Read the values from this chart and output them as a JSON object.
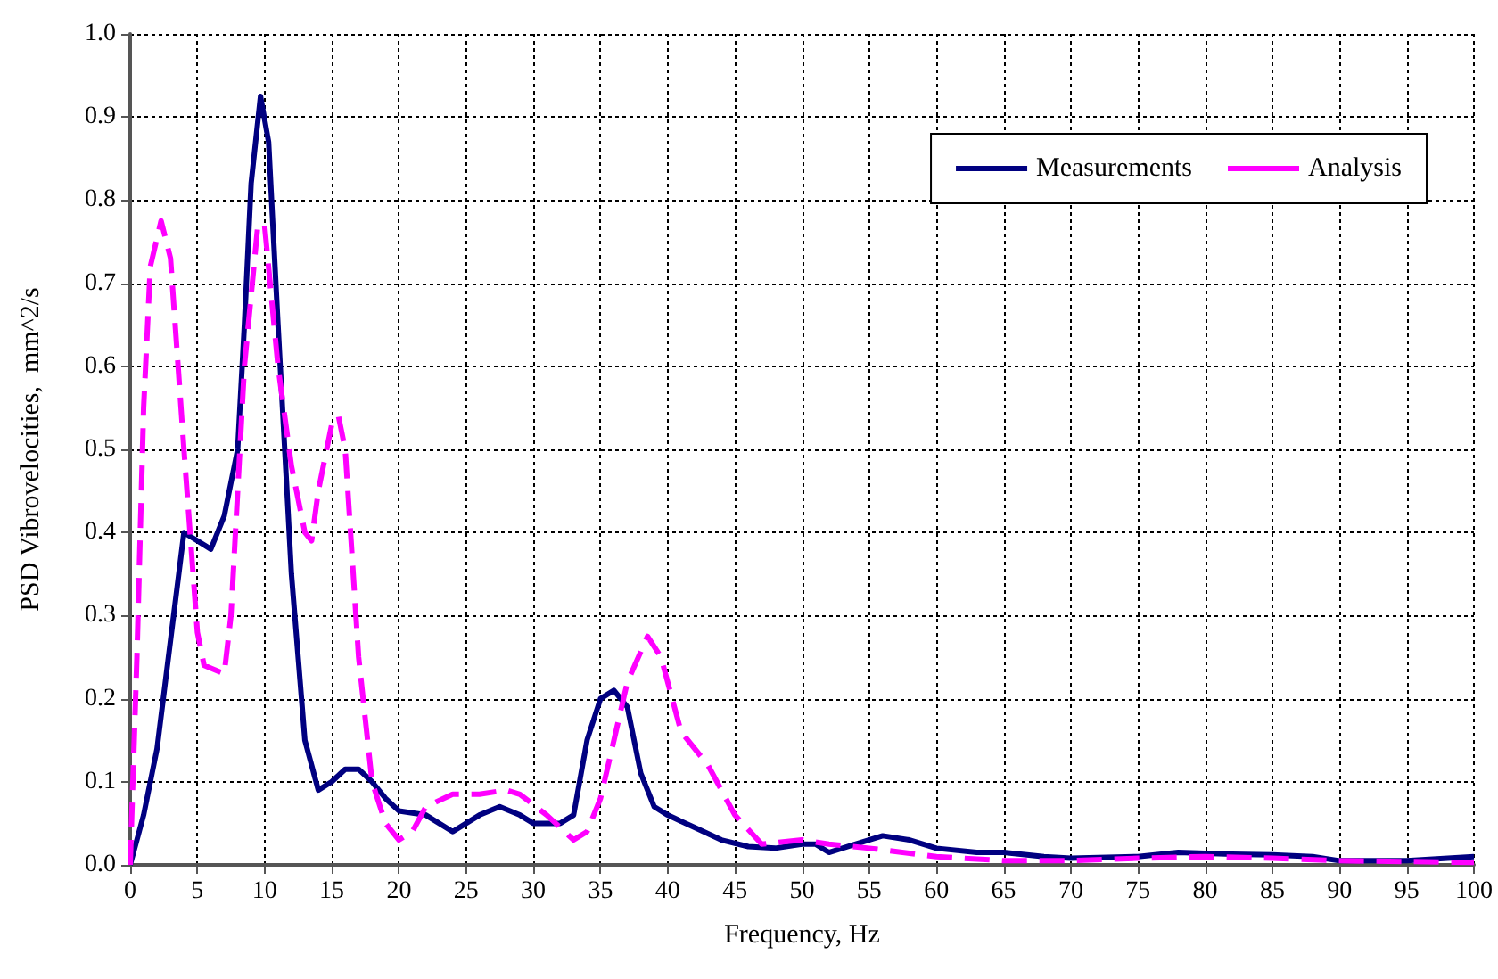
{
  "chart_data": {
    "type": "line",
    "xlabel": "Frequency, Hz",
    "ylabel": "PSD Vibrovelocities,  mm^2/s",
    "xlim": [
      0,
      100
    ],
    "xticks": [
      0,
      5,
      10,
      15,
      20,
      25,
      30,
      35,
      40,
      45,
      50,
      55,
      60,
      65,
      70,
      75,
      80,
      85,
      90,
      95,
      100
    ],
    "ylim": [
      0,
      1
    ],
    "yticks": [
      {
        "value": 0,
        "label": "0.0"
      },
      {
        "value": 0.1,
        "label": "0.1"
      },
      {
        "value": 0.2,
        "label": "0.2"
      },
      {
        "value": 0.3,
        "label": "0.3"
      },
      {
        "value": 0.4,
        "label": "0.4"
      },
      {
        "value": 0.5,
        "label": "0.5"
      },
      {
        "value": 0.6,
        "label": "0.6"
      },
      {
        "value": 0.7,
        "label": "0.7"
      },
      {
        "value": 0.8,
        "label": "0.8"
      },
      {
        "value": 0.9,
        "label": "0.9"
      },
      {
        "value": 1,
        "label": "1.0"
      }
    ],
    "grid": true,
    "legend": "top right",
    "marker": "none",
    "series": [
      {
        "name": "Measurements",
        "color": "#000080",
        "line_style": "solid",
        "x": [
          0,
          1,
          2,
          3,
          4,
          5,
          6,
          7,
          8,
          8.5,
          9,
          9.7,
          10.3,
          11,
          12,
          13,
          14,
          15,
          16,
          17,
          18,
          19,
          20,
          22,
          24,
          26,
          27.5,
          29,
          30,
          32,
          33,
          34,
          35,
          36,
          37,
          38,
          39,
          40,
          42,
          44,
          46,
          48,
          50,
          51,
          52,
          54,
          56,
          58,
          60,
          63,
          65,
          68,
          70,
          75,
          78,
          82,
          85,
          88,
          90,
          95,
          100
        ],
        "values": [
          0,
          0.06,
          0.14,
          0.27,
          0.4,
          0.39,
          0.38,
          0.42,
          0.5,
          0.65,
          0.82,
          0.925,
          0.87,
          0.65,
          0.35,
          0.15,
          0.09,
          0.1,
          0.115,
          0.115,
          0.1,
          0.08,
          0.065,
          0.06,
          0.04,
          0.06,
          0.07,
          0.06,
          0.05,
          0.05,
          0.06,
          0.15,
          0.2,
          0.21,
          0.19,
          0.11,
          0.07,
          0.06,
          0.045,
          0.03,
          0.022,
          0.02,
          0.025,
          0.025,
          0.015,
          0.025,
          0.035,
          0.03,
          0.02,
          0.015,
          0.015,
          0.01,
          0.008,
          0.01,
          0.015,
          0.013,
          0.012,
          0.01,
          0.005,
          0.005,
          0.01
        ]
      },
      {
        "name": "Analysis",
        "color": "#ff00ff",
        "line_style": "dashed",
        "x": [
          0,
          0.5,
          1,
          1.5,
          2.3,
          3,
          4,
          5,
          5.5,
          7,
          7.5,
          8.5,
          9.5,
          10,
          11,
          12,
          13,
          13.5,
          14,
          15,
          15.5,
          16,
          17,
          18,
          19,
          20,
          21,
          22,
          24,
          26,
          28,
          29,
          31,
          33,
          34,
          35,
          36,
          37,
          38.5,
          39.5,
          41,
          43,
          45,
          47,
          50,
          52,
          55,
          60,
          65,
          70,
          75,
          80,
          85,
          90,
          95,
          100
        ],
        "values": [
          0,
          0.25,
          0.55,
          0.72,
          0.775,
          0.73,
          0.5,
          0.28,
          0.24,
          0.23,
          0.3,
          0.6,
          0.77,
          0.77,
          0.6,
          0.48,
          0.4,
          0.39,
          0.45,
          0.53,
          0.54,
          0.5,
          0.25,
          0.1,
          0.05,
          0.03,
          0.04,
          0.07,
          0.085,
          0.085,
          0.09,
          0.085,
          0.06,
          0.03,
          0.04,
          0.08,
          0.15,
          0.22,
          0.275,
          0.25,
          0.16,
          0.12,
          0.06,
          0.025,
          0.03,
          0.025,
          0.02,
          0.01,
          0.005,
          0.005,
          0.008,
          0.01,
          0.008,
          0.005,
          0.004,
          0.003
        ]
      }
    ]
  }
}
